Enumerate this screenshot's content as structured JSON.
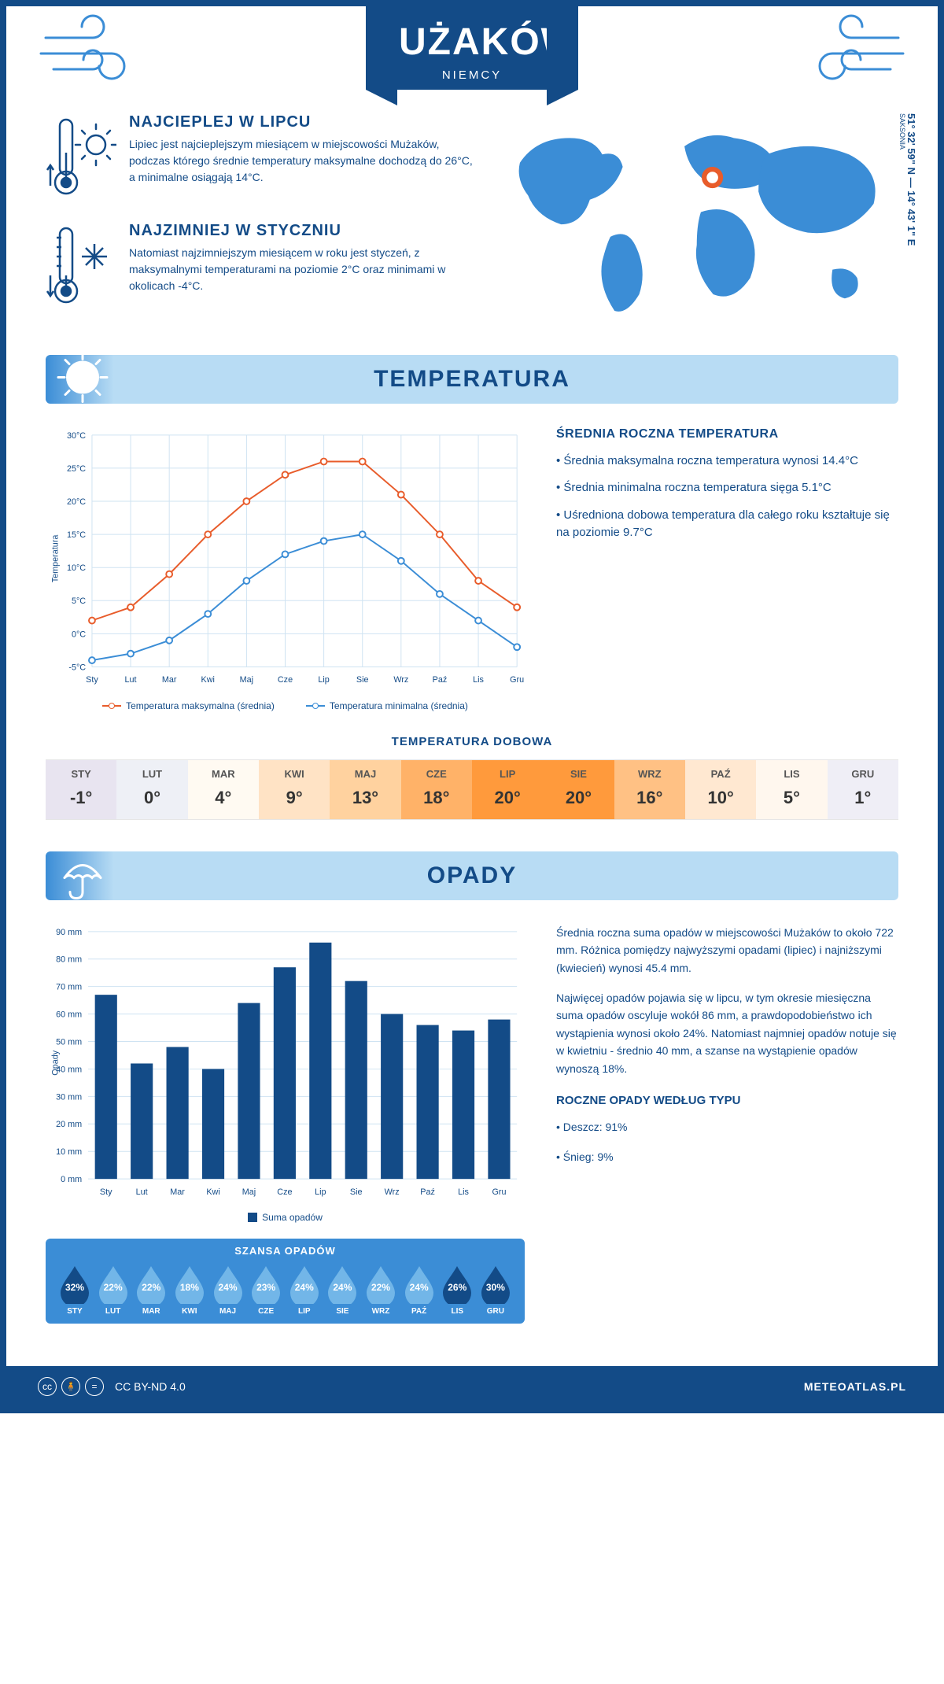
{
  "header": {
    "title": "MUŻAKÓW",
    "subtitle": "NIEMCY"
  },
  "coords": "51° 32' 59\" N — 14° 43' 1\" E",
  "region": "SAKSONIA",
  "warm": {
    "title": "NAJCIEPLEJ W LIPCU",
    "text": "Lipiec jest najcieplejszym miesiącem w miejscowości Mużaków, podczas którego średnie temperatury maksymalne dochodzą do 26°C, a minimalne osiągają 14°C."
  },
  "cold": {
    "title": "NAJZIMNIEJ W STYCZNIU",
    "text": "Natomiast najzimniejszym miesiącem w roku jest styczeń, z maksymalnymi temperaturami na poziomie 2°C oraz minimami w okolicach -4°C."
  },
  "temp_section": {
    "title": "TEMPERATURA"
  },
  "temp_chart": {
    "type": "line",
    "months": [
      "Sty",
      "Lut",
      "Mar",
      "Kwi",
      "Maj",
      "Cze",
      "Lip",
      "Sie",
      "Wrz",
      "Paź",
      "Lis",
      "Gru"
    ],
    "max": [
      2,
      4,
      9,
      15,
      20,
      24,
      26,
      26,
      21,
      15,
      8,
      4
    ],
    "min": [
      -4,
      -3,
      -1,
      3,
      8,
      12,
      14,
      15,
      11,
      6,
      2,
      -2
    ],
    "ylabel": "Temperatura",
    "ylim": [
      -5,
      30
    ],
    "ytick_step": 5,
    "max_color": "#e85c2b",
    "min_color": "#3b8dd6",
    "grid_color": "#cfe3f2",
    "bg": "#ffffff",
    "legend_max": "Temperatura maksymalna (średnia)",
    "legend_min": "Temperatura minimalna (średnia)"
  },
  "temp_text": {
    "title": "ŚREDNIA ROCZNA TEMPERATURA",
    "b1": "• Średnia maksymalna roczna temperatura wynosi 14.4°C",
    "b2": "• Średnia minimalna roczna temperatura sięga 5.1°C",
    "b3": "• Uśredniona dobowa temperatura dla całego roku kształtuje się na poziomie 9.7°C"
  },
  "daily": {
    "title": "TEMPERATURA DOBOWA",
    "months": [
      "STY",
      "LUT",
      "MAR",
      "KWI",
      "MAJ",
      "CZE",
      "LIP",
      "SIE",
      "WRZ",
      "PAŹ",
      "LIS",
      "GRU"
    ],
    "values": [
      "-1°",
      "0°",
      "4°",
      "9°",
      "13°",
      "18°",
      "20°",
      "20°",
      "16°",
      "10°",
      "5°",
      "1°"
    ],
    "colors": [
      "#e8e4f0",
      "#eef0f6",
      "#fffaf2",
      "#ffe3c5",
      "#ffd29f",
      "#ffb268",
      "#ff9a3c",
      "#ff9a3c",
      "#ffc184",
      "#ffe8d1",
      "#fff7ee",
      "#efeef6"
    ]
  },
  "precip_section": {
    "title": "OPADY"
  },
  "precip_chart": {
    "type": "bar",
    "months": [
      "Sty",
      "Lut",
      "Mar",
      "Kwi",
      "Maj",
      "Cze",
      "Lip",
      "Sie",
      "Wrz",
      "Paź",
      "Lis",
      "Gru"
    ],
    "values": [
      67,
      42,
      48,
      40,
      64,
      77,
      86,
      72,
      60,
      56,
      54,
      58
    ],
    "ylabel": "Opady",
    "ylim": [
      0,
      90
    ],
    "ytick_step": 10,
    "bar_color": "#134b87",
    "grid_color": "#cfe3f2",
    "legend": "Suma opadów"
  },
  "precip_text": {
    "p1": "Średnia roczna suma opadów w miejscowości Mużaków to około 722 mm. Różnica pomiędzy najwyższymi opadami (lipiec) i najniższymi (kwiecień) wynosi 45.4 mm.",
    "p2": "Najwięcej opadów pojawia się w lipcu, w tym okresie miesięczna suma opadów oscyluje wokół 86 mm, a prawdopodobieństwo ich wystąpienia wynosi około 24%. Natomiast najmniej opadów notuje się w kwietniu - średnio 40 mm, a szanse na wystąpienie opadów wynoszą 18%.",
    "type_title": "ROCZNE OPADY WEDŁUG TYPU",
    "rain": "• Deszcz: 91%",
    "snow": "• Śnieg: 9%"
  },
  "chance": {
    "title": "SZANSA OPADÓW",
    "months": [
      "STY",
      "LUT",
      "MAR",
      "KWI",
      "MAJ",
      "CZE",
      "LIP",
      "SIE",
      "WRZ",
      "PAŹ",
      "LIS",
      "GRU"
    ],
    "pct": [
      "32%",
      "22%",
      "22%",
      "18%",
      "24%",
      "23%",
      "24%",
      "24%",
      "22%",
      "24%",
      "26%",
      "30%"
    ],
    "dark_color": "#134b87",
    "light_color": "#72b6e8",
    "shades": [
      "dark",
      "light",
      "light",
      "light",
      "light",
      "light",
      "light",
      "light",
      "light",
      "light",
      "dark",
      "dark"
    ]
  },
  "footer": {
    "license": "CC BY-ND 4.0",
    "site": "METEOATLAS.PL"
  }
}
